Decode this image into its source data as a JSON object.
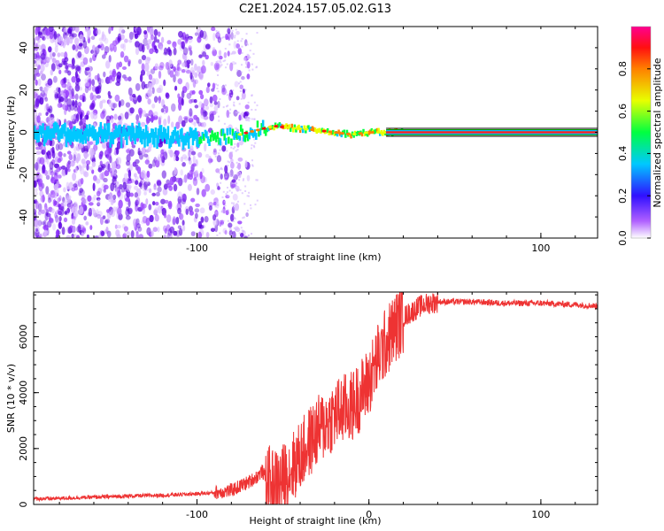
{
  "title": "C2E1.2024.157.05.02.G13",
  "chart_data": [
    {
      "type": "heatmap",
      "xlabel": "Height of straight line (km)",
      "ylabel": "Frequency (Hz)",
      "xlim": [
        -195,
        133
      ],
      "ylim": [
        -50,
        50
      ],
      "xticks": [
        -100,
        100
      ],
      "yticks": [
        -40,
        -20,
        0,
        20,
        40
      ],
      "colorbar": {
        "label": "Normalized spectral amplitude",
        "ticks": [
          "0.0",
          "0.2",
          "0.4",
          "0.6",
          "0.8"
        ],
        "range": [
          0,
          1
        ]
      },
      "ridge": {
        "x": [
          -195,
          -150,
          -100,
          -80,
          -65,
          -55,
          -45,
          -30,
          -20,
          -10,
          0,
          20,
          60,
          133
        ],
        "y": [
          0,
          -1,
          -3,
          -2,
          1,
          3,
          2,
          1,
          0,
          -1,
          0,
          0,
          0,
          0
        ]
      }
    },
    {
      "type": "line",
      "xlabel": "Height of straight line (km)",
      "ylabel": "SNR (10 * v/v)",
      "xlim": [
        -195,
        133
      ],
      "ylim": [
        0,
        7600
      ],
      "xticks": [
        -100,
        0,
        100
      ],
      "yticks": [
        0,
        2000,
        4000,
        6000
      ],
      "series": [
        {
          "color": "#ee3333",
          "x": [
            -195,
            -180,
            -160,
            -140,
            -120,
            -100,
            -90,
            -80,
            -75,
            -70,
            -65,
            -62,
            -60,
            -55,
            -50,
            -45,
            -40,
            -35,
            -30,
            -25,
            -20,
            -15,
            -10,
            -5,
            0,
            5,
            10,
            15,
            20,
            25,
            30,
            35,
            40,
            50,
            60,
            80,
            100,
            120,
            133
          ],
          "y": [
            200,
            220,
            260,
            300,
            330,
            380,
            420,
            500,
            650,
            800,
            1000,
            1200,
            900,
            700,
            900,
            1300,
            1700,
            2200,
            2600,
            2900,
            3200,
            3400,
            3500,
            3900,
            4400,
            5200,
            5800,
            6300,
            6700,
            6900,
            7100,
            7200,
            7250,
            7250,
            7250,
            7200,
            7200,
            7150,
            7100
          ]
        }
      ]
    }
  ]
}
